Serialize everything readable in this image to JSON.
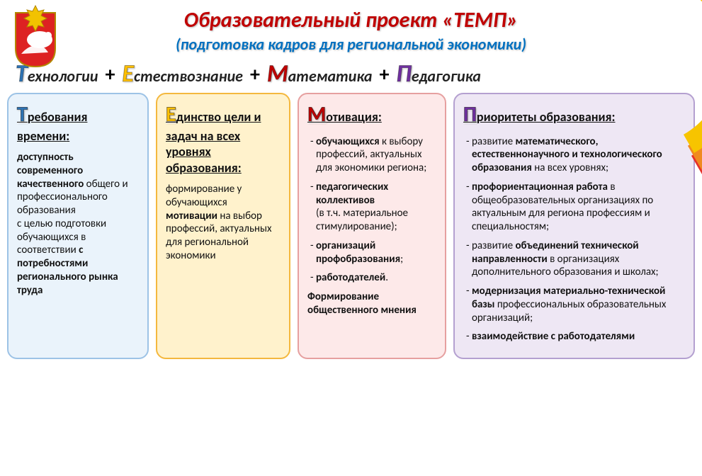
{
  "colors": {
    "title": "#c00000",
    "subtitle": "#0070c0",
    "letter_T": "#2e74b5",
    "letter_E": "#ffc000",
    "letter_M": "#c00000",
    "letter_P": "#7030a0",
    "col1_bg": "#eaf3fb",
    "col1_border": "#9dc3e6",
    "col2_bg": "#fff2cc",
    "col2_border": "#f4b83e",
    "col3_bg": "#fde9e9",
    "col3_border": "#e6a0a0",
    "col4_bg": "#eee7f4",
    "col4_border": "#b4a0d0",
    "swoosh_red": "#e6312a",
    "swoosh_orange": "#f08a1f",
    "swoosh_yellow": "#f7c400"
  },
  "title": "Образовательный проект «ТЕМП»",
  "subtitle": "(подготовка кадров для региональной экономики)",
  "acronym": {
    "T": {
      "letter": "Т",
      "rest": "ехнологии"
    },
    "E": {
      "letter": "Е",
      "rest": "стествознание"
    },
    "M": {
      "letter": "М",
      "rest": "атематика"
    },
    "P": {
      "letter": "П",
      "rest": "едагогика"
    },
    "plus": "+"
  },
  "columns": {
    "c1": {
      "head_letter": "Т",
      "head_rest": "ребования времени",
      "body_html": "<span class='b'>доступность современного качественного</span> общего и профессионального образования<br> с целью подготовки обучающихся в соответствии <span class='b'>с потребностями регионального рынка труда</span>"
    },
    "c2": {
      "head_letter": "Е",
      "head_rest": "динство цели и задач на всех уровнях образования",
      "body_html": "формирование у обучающихся <span class='b'>мотивации</span> на выбор профессий, актуальных для региональной экономики"
    },
    "c3": {
      "head_letter": "М",
      "head_rest": "отивация",
      "items": [
        "<span class='b'>обучающихся</span> к выбору профессий, актуальных для экономики региона;",
        "<span class='b'>педагогических коллективов</span><br>(в т.ч. материальное стимулирование);",
        "<span class='b'>организаций профобразования</span>;",
        "<span class='b'>работодателей</span>."
      ],
      "footer": "Формирование общественного мнения"
    },
    "c4": {
      "head_letter": "П",
      "head_rest": "риоритеты образования",
      "items": [
        "развитие <span class='b'>математического, естественнонаучного и технологического образования</span> на всех уровнях;",
        "<span class='b'>профориентационная работа</span> в общеобразовательных организациях по актуальным для региона профессиям и специальностям;",
        "развитие <span class='b'>объединений технической направленности</span> в организациях дополнительного образования и школах;",
        "<span class='b'>модернизация материально-технической базы</span> профессиональных образовательных организаций;",
        "<span class='b'>взаимодействие с работодателями</span>"
      ]
    }
  }
}
